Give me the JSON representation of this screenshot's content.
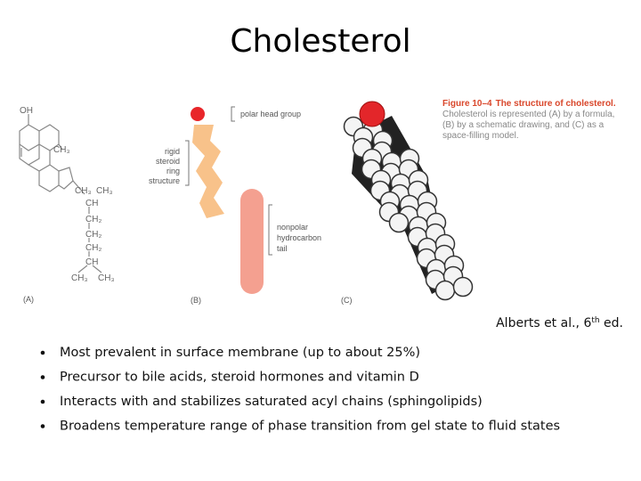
{
  "title": "Cholesterol",
  "figure": {
    "panel_a": {
      "label": "(A)",
      "formula": [
        "OH",
        "CH₃",
        "CH₃",
        "CH₃",
        "CH",
        "CH₂",
        "CH₂",
        "CH₂",
        "CH",
        "CH₃",
        "CH₃"
      ]
    },
    "panel_b": {
      "label": "(B)",
      "head": "polar head group",
      "ring": [
        "rigid",
        "steroid",
        "ring",
        "structure"
      ],
      "tail": [
        "nonpolar",
        "hydrocarbon",
        "tail"
      ]
    },
    "panel_c": {
      "label": "(C)"
    },
    "caption": {
      "number": "Figure 10–4",
      "heading": "The structure of cholesterol.",
      "lines": [
        "Cholesterol is represented (A) by a formula,",
        "(B) by a schematic drawing, and (C) as a",
        "space-filling model."
      ]
    }
  },
  "citation": {
    "text": "Alberts et al., 6",
    "sup": "th",
    "tail": " ed."
  },
  "bullets": [
    "Most prevalent in surface membrane (up to about 25%)",
    "Precursor to bile acids, steroid hormones and vitamin D",
    "Interacts with and stabilizes saturated acyl chains (sphingolipids)",
    "Broadens temperature range of phase transition from gel state to fluid states"
  ]
}
